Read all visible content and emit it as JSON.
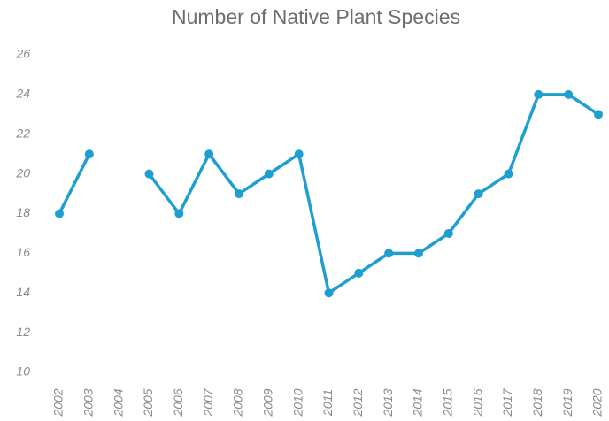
{
  "chart_data": {
    "type": "line",
    "title": "Number of Native Plant Species",
    "categories": [
      "2002",
      "2003",
      "2004",
      "2005",
      "2006",
      "2007",
      "2008",
      "2009",
      "2010",
      "2011",
      "2012",
      "2013",
      "2014",
      "2015",
      "2016",
      "2017",
      "2018",
      "2019",
      "2020"
    ],
    "series": [
      {
        "name": "Number of Native Plant Species",
        "color": "#1f9fd0",
        "values": [
          18,
          21,
          null,
          20,
          18,
          21,
          19,
          20,
          21,
          14,
          15,
          16,
          16,
          17,
          19,
          20,
          24,
          24,
          23
        ]
      }
    ],
    "ylim": [
      10,
      26
    ],
    "yticks": [
      10,
      12,
      14,
      16,
      18,
      20,
      22,
      24,
      26
    ],
    "grid": false
  }
}
